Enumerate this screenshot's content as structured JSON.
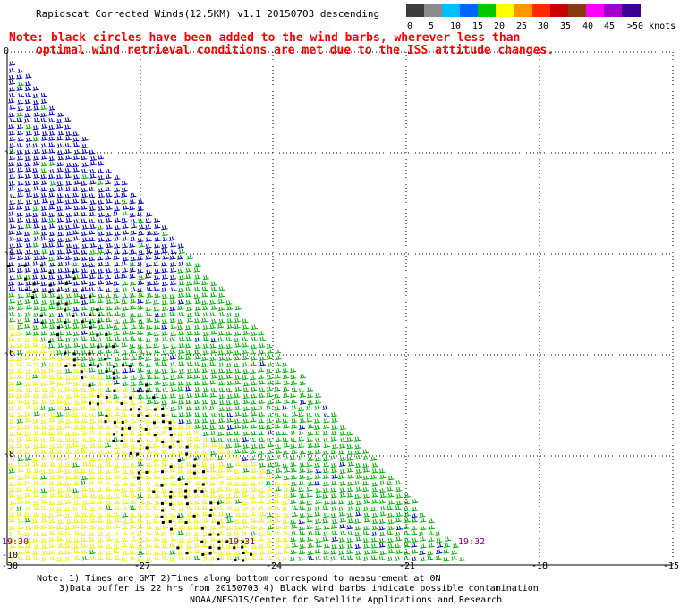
{
  "header": {
    "title": "Rapidscat Corrected Winds(12.5KM) v1.1 20150703 descending",
    "note_line1": "Note: black circles have been added to the wind barbs, wherever less than",
    "note_line2": "optimal wind retrieval conditions are met due to the ISS attitude changes."
  },
  "legend": {
    "unit": ">50 knots",
    "labels": [
      "0",
      "5",
      "10",
      "15",
      "20",
      "25",
      "30",
      "35",
      "40",
      "45"
    ],
    "colors": [
      "#3c3c3c",
      "#8c8c8c",
      "#00bfff",
      "#0064ff",
      "#00c800",
      "#ffff00",
      "#ff9600",
      "#ff2800",
      "#c80000",
      "#8b3a0f",
      "#ff00ff",
      "#a000c8",
      "#3c0096"
    ]
  },
  "map": {
    "x_ticks": [
      "-30",
      "-27",
      "-24",
      "-21",
      "-18",
      "-15"
    ],
    "y_ticks": [
      "0",
      "-2",
      "-4",
      "-6",
      "-8",
      "-10"
    ],
    "times": [
      "19:30",
      "19:31",
      "19:32"
    ],
    "colors": {
      "blue": "#0000c8",
      "green": "#00b400",
      "yellow": "#f0f000",
      "circle": "#000000"
    }
  },
  "footer": {
    "line1": "Note: 1) Times are GMT 2)Times along bottom correspond to measurement at 0N",
    "line2": "3)Data buffer is 22 hrs from 20150703 4) Black wind barbs indicate possible contamination",
    "line3": "NOAA/NESDIS/Center for Satellite Applications and Research"
  }
}
